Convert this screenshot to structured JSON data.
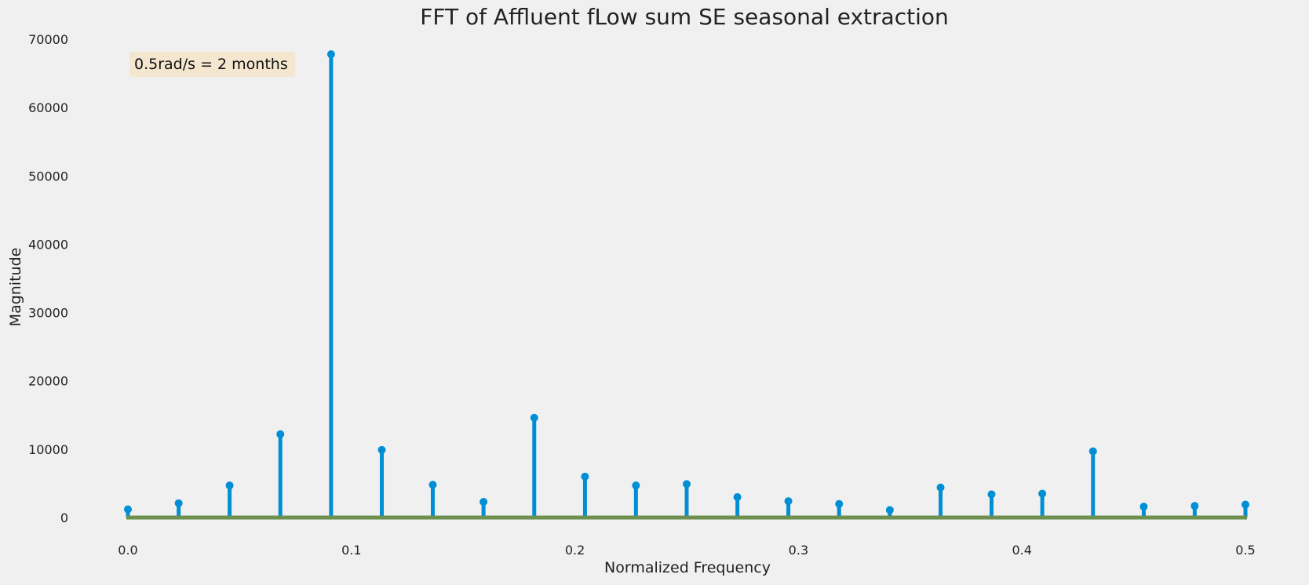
{
  "chart_data": {
    "type": "stem",
    "title": "FFT of Affluent fLow sum SE seasonal extraction",
    "xlabel": "Normalized Frequency",
    "ylabel": "Magnitude",
    "xlim": [
      0.0,
      0.5
    ],
    "ylim": [
      0,
      70000
    ],
    "xticks": [
      "0.0",
      "0.1",
      "0.2",
      "0.3",
      "0.4",
      "0.5"
    ],
    "yticks": [
      "0",
      "10000",
      "20000",
      "30000",
      "40000",
      "50000",
      "60000",
      "70000"
    ],
    "grid": false,
    "annotation": "0.5rad/s = 2 months",
    "colors": {
      "background": "#f0f0f0",
      "stem": "#008fd5",
      "baseline": "#6d904f",
      "annotation_box": "#f5e6cf"
    },
    "points": [
      {
        "x": 0.0,
        "y": 1200
      },
      {
        "x": 0.0227,
        "y": 2100
      },
      {
        "x": 0.0455,
        "y": 4700
      },
      {
        "x": 0.0682,
        "y": 12200
      },
      {
        "x": 0.0909,
        "y": 67800
      },
      {
        "x": 0.1136,
        "y": 9900
      },
      {
        "x": 0.1364,
        "y": 4800
      },
      {
        "x": 0.1591,
        "y": 2300
      },
      {
        "x": 0.1818,
        "y": 14600
      },
      {
        "x": 0.2045,
        "y": 6000
      },
      {
        "x": 0.2273,
        "y": 4700
      },
      {
        "x": 0.25,
        "y": 4900
      },
      {
        "x": 0.2727,
        "y": 3000
      },
      {
        "x": 0.2955,
        "y": 2400
      },
      {
        "x": 0.3182,
        "y": 2000
      },
      {
        "x": 0.3409,
        "y": 1100
      },
      {
        "x": 0.3636,
        "y": 4400
      },
      {
        "x": 0.3864,
        "y": 3400
      },
      {
        "x": 0.4091,
        "y": 3500
      },
      {
        "x": 0.4318,
        "y": 9700
      },
      {
        "x": 0.4545,
        "y": 1600
      },
      {
        "x": 0.4773,
        "y": 1700
      },
      {
        "x": 0.5,
        "y": 1900
      }
    ]
  }
}
